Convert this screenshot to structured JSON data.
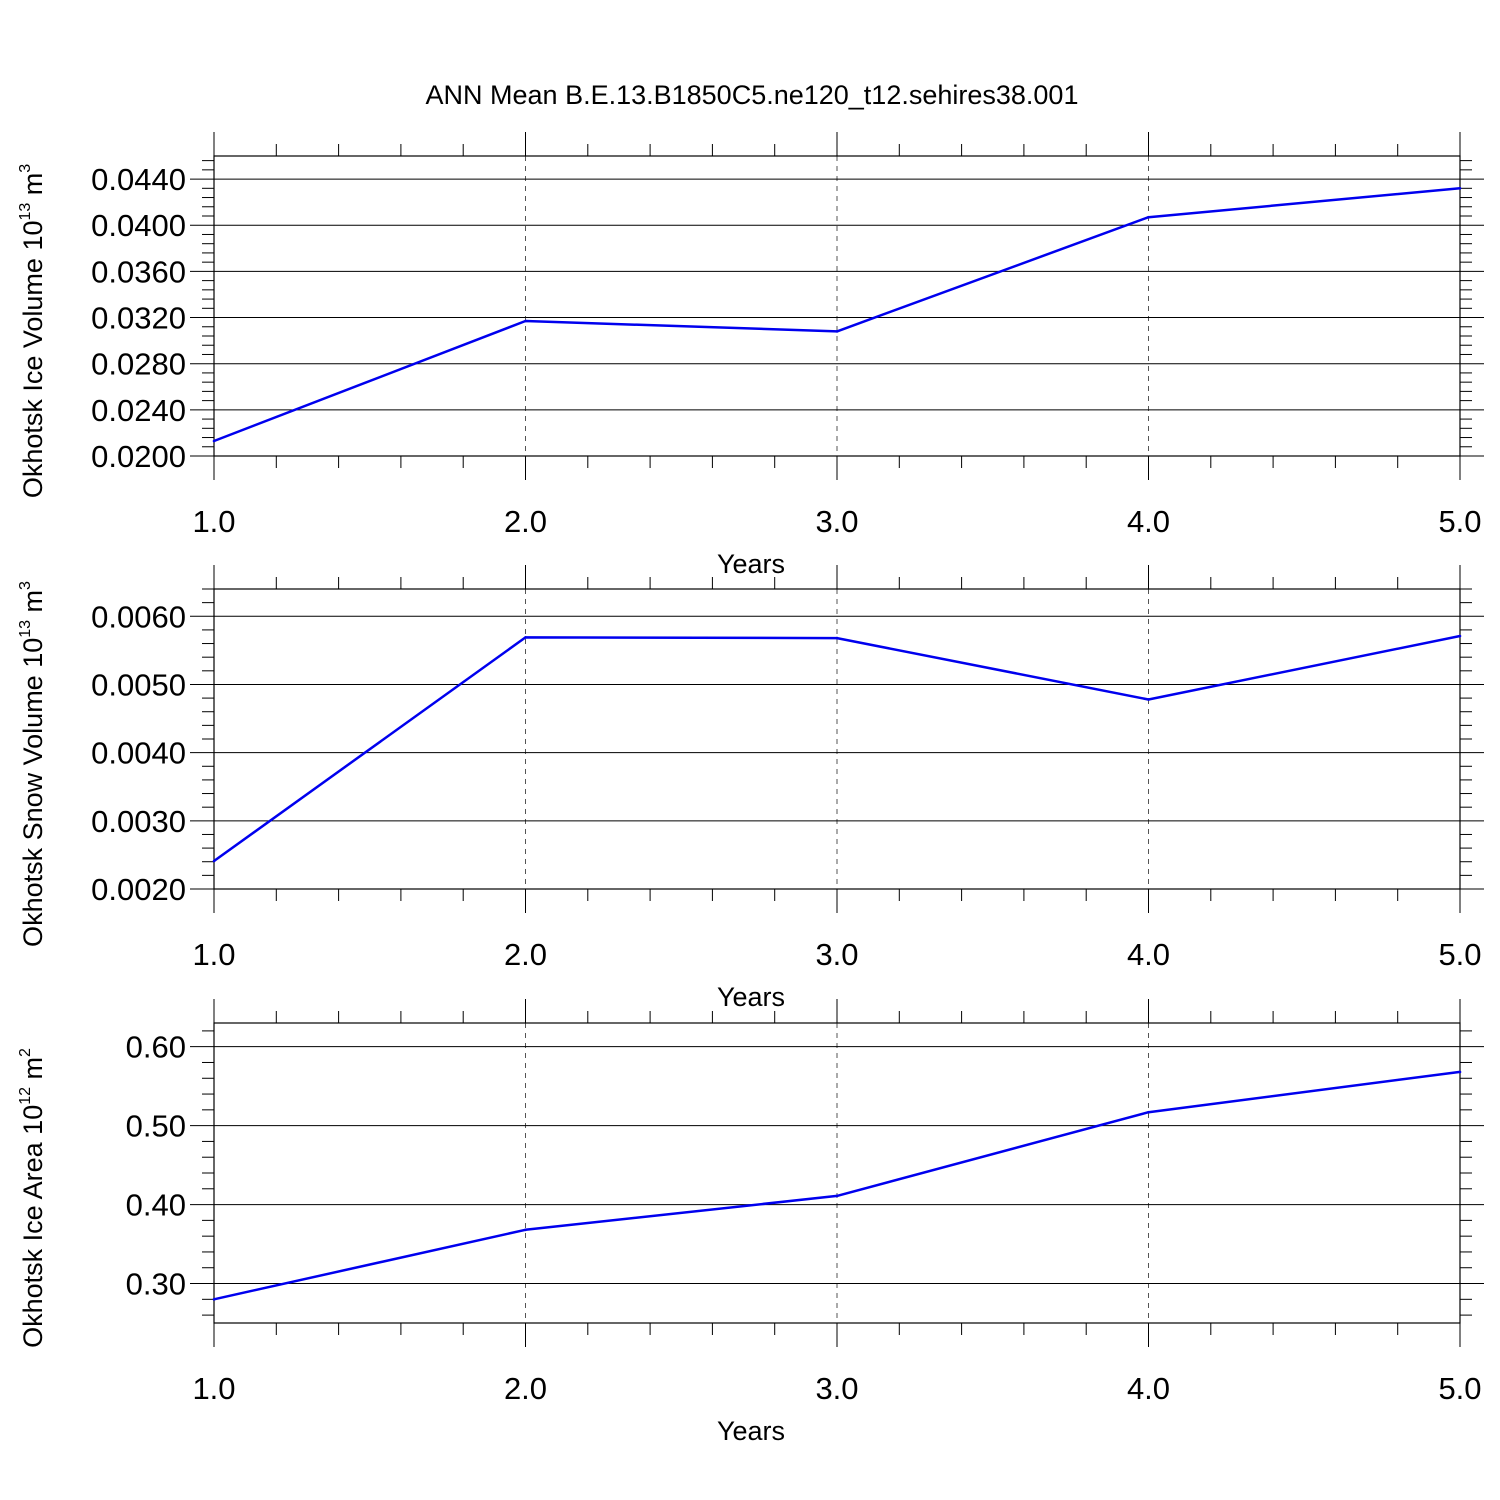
{
  "figure": {
    "title": "ANN Mean B.E.13.B1850C5.ne120_t12.sehires38.001"
  },
  "colors": {
    "line": "#0000ee",
    "grid": "#555555",
    "axis": "#000000"
  },
  "chart_data": [
    {
      "type": "line",
      "xlabel": "Years",
      "ylabel": {
        "prefix": "Okhotsk Ice Volume 10",
        "exp": "13",
        "unit": " m",
        "unit_exp": "3"
      },
      "xlim": [
        1.0,
        5.0
      ],
      "ylim": [
        0.02,
        0.046
      ],
      "x_ticks": [
        1.0,
        2.0,
        3.0,
        4.0,
        5.0
      ],
      "x_tick_labels": [
        "1.0",
        "2.0",
        "3.0",
        "4.0",
        "5.0"
      ],
      "y_ticks": [
        0.02,
        0.024,
        0.028,
        0.032,
        0.036,
        0.04,
        0.044
      ],
      "y_tick_labels": [
        "0.0200",
        "0.0240",
        "0.0280",
        "0.0320",
        "0.0360",
        "0.0400",
        "0.0440"
      ],
      "y_minor_step": 0.0008,
      "x_minor_step": 0.2,
      "grid": "vertical-dashed",
      "x": [
        1.0,
        2.0,
        3.0,
        4.0,
        5.0
      ],
      "values": [
        0.0213,
        0.0317,
        0.0308,
        0.0407,
        0.0432
      ]
    },
    {
      "type": "line",
      "xlabel": "Years",
      "ylabel": {
        "prefix": "Okhotsk Snow Volume 10",
        "exp": "13",
        "unit": " m",
        "unit_exp": "3"
      },
      "xlim": [
        1.0,
        5.0
      ],
      "ylim": [
        0.002,
        0.0064
      ],
      "x_ticks": [
        1.0,
        2.0,
        3.0,
        4.0,
        5.0
      ],
      "x_tick_labels": [
        "1.0",
        "2.0",
        "3.0",
        "4.0",
        "5.0"
      ],
      "y_ticks": [
        0.002,
        0.003,
        0.004,
        0.005,
        0.006
      ],
      "y_tick_labels": [
        "0.0020",
        "0.0030",
        "0.0040",
        "0.0050",
        "0.0060"
      ],
      "y_minor_step": 0.0002,
      "x_minor_step": 0.2,
      "grid": "vertical-dashed",
      "x": [
        1.0,
        2.0,
        3.0,
        4.0,
        5.0
      ],
      "values": [
        0.00241,
        0.00569,
        0.00568,
        0.00478,
        0.00571
      ]
    },
    {
      "type": "line",
      "xlabel": "Years",
      "ylabel": {
        "prefix": "Okhotsk Ice Area 10",
        "exp": "12",
        "unit": " m",
        "unit_exp": "2"
      },
      "xlim": [
        1.0,
        5.0
      ],
      "ylim": [
        0.25,
        0.63
      ],
      "x_ticks": [
        1.0,
        2.0,
        3.0,
        4.0,
        5.0
      ],
      "x_tick_labels": [
        "1.0",
        "2.0",
        "3.0",
        "4.0",
        "5.0"
      ],
      "y_ticks": [
        0.3,
        0.4,
        0.5,
        0.6
      ],
      "y_tick_labels": [
        "0.30",
        "0.40",
        "0.50",
        "0.60"
      ],
      "y_minor_step": 0.02,
      "x_minor_step": 0.2,
      "grid": "vertical-dashed",
      "x": [
        1.0,
        2.0,
        3.0,
        4.0,
        5.0
      ],
      "values": [
        0.28,
        0.368,
        0.411,
        0.517,
        0.568
      ]
    }
  ]
}
